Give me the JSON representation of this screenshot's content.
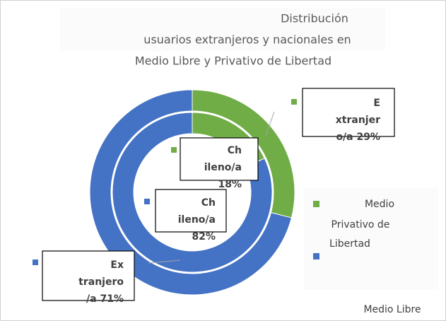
{
  "chart_data": {
    "type": "doughnut",
    "title": [
      "Distribución",
      "usuarios extranjeros y nacionales en",
      "Medio Libre y Privativo de Libertad"
    ],
    "categories": [
      "Extranjero/a",
      "Chileno/a"
    ],
    "series": [
      {
        "name": [
          "Medio",
          "Privativo de",
          "Libertad"
        ],
        "color": "#70ad47",
        "values": [
          29,
          18
        ],
        "value_labels": [
          [
            "E",
            "xtranjer",
            "o/a 29%"
          ],
          [
            "Ch",
            "ileno/a",
            "18%"
          ]
        ]
      },
      {
        "name": [
          "Medio Libre"
        ],
        "color": "#4472c4",
        "values": [
          71,
          82
        ],
        "value_labels": [
          [
            "Ex",
            "tranjero",
            "/a 71%"
          ],
          [
            "Ch",
            "ileno/a",
            "82%"
          ]
        ]
      }
    ]
  }
}
